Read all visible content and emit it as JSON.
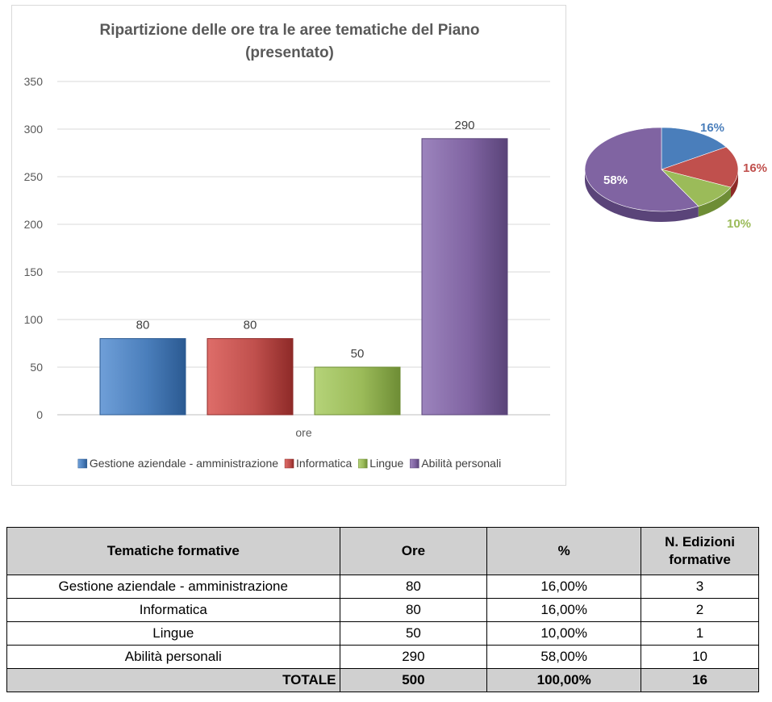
{
  "colors": {
    "series": [
      "#4a7ebb",
      "#c0504d",
      "#9bbb59",
      "#8064a2"
    ],
    "series_dark": [
      "#2b5a92",
      "#8e2a28",
      "#6e8d35",
      "#5a4479"
    ],
    "series_light": [
      "#6f9fd8",
      "#de6d69",
      "#b5d379",
      "#9c84bd"
    ],
    "grid": "#d9d9d9",
    "table_header_bg": "#d0d0d0"
  },
  "chart_data": [
    {
      "type": "bar",
      "title": "Ripartizione delle ore tra le aree tematiche del Piano",
      "subtitle": "(presentato)",
      "categories": [
        "ore"
      ],
      "series": [
        {
          "name": "Gestione aziendale - amministrazione",
          "values": [
            80
          ]
        },
        {
          "name": "Informatica",
          "values": [
            80
          ]
        },
        {
          "name": "Lingue",
          "values": [
            50
          ]
        },
        {
          "name": "Abilità personali",
          "values": [
            290
          ]
        }
      ],
      "data_labels": [
        "80",
        "80",
        "50",
        "290"
      ],
      "ylim": [
        0,
        350
      ],
      "yticks": [
        0,
        50,
        100,
        150,
        200,
        250,
        300,
        350
      ],
      "ytick_labels": [
        "0",
        "50",
        "100",
        "150",
        "200",
        "250",
        "300",
        "350"
      ],
      "xlabel": "ore",
      "ylabel": "",
      "grid": true,
      "legend": "bottom"
    },
    {
      "type": "pie",
      "labels": [
        "Gestione aziendale - amministrazione",
        "Informatica",
        "Lingue",
        "Abilità personali"
      ],
      "values": [
        16,
        16,
        10,
        58
      ],
      "value_labels": [
        "16%",
        "16%",
        "10%",
        "58%"
      ],
      "style": "3d"
    }
  ],
  "table": {
    "headers": [
      "Tematiche formative",
      "Ore",
      "%",
      "N. Edizioni formative"
    ],
    "rows": [
      [
        "Gestione aziendale - amministrazione",
        "80",
        "16,00%",
        "3"
      ],
      [
        "Informatica",
        "80",
        "16,00%",
        "2"
      ],
      [
        "Lingue",
        "50",
        "10,00%",
        "1"
      ],
      [
        "Abilità personali",
        "290",
        "58,00%",
        "10"
      ]
    ],
    "total": [
      "TOTALE",
      "500",
      "100,00%",
      "16"
    ]
  }
}
